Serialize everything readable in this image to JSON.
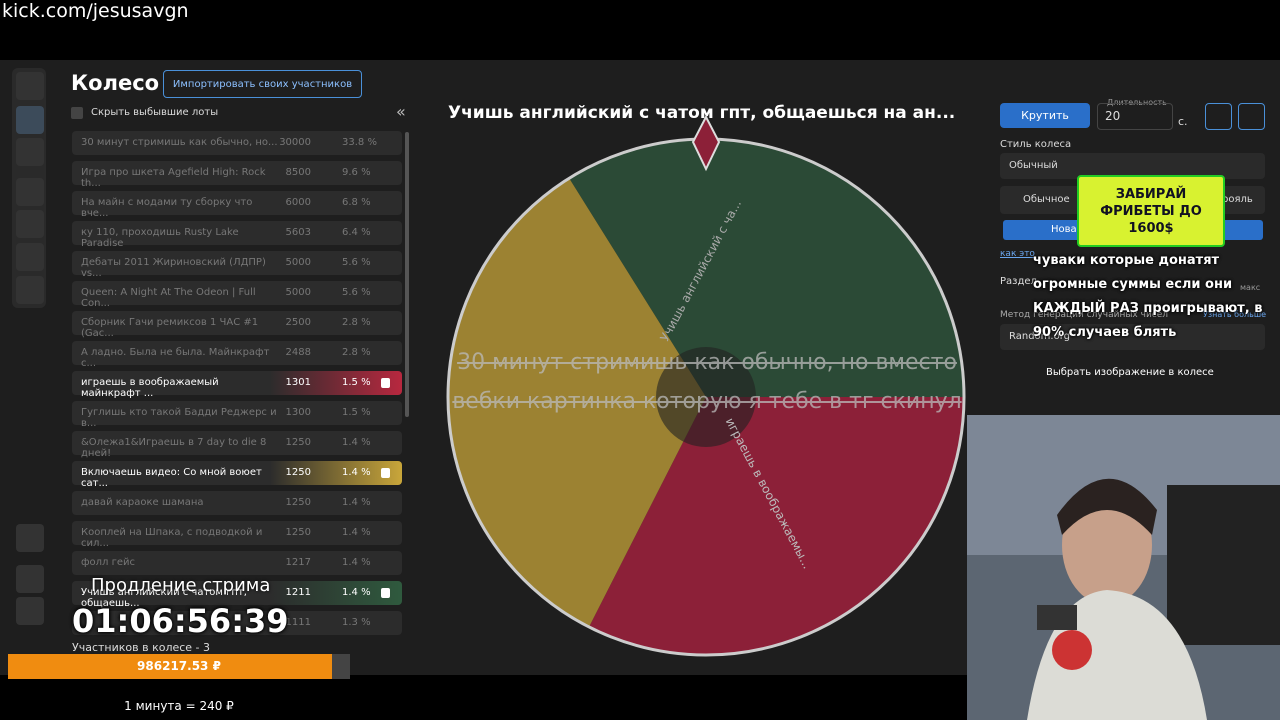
{
  "stream_url": "kick.com/jesusavgn",
  "header": {
    "title": "Колесо",
    "import_button": "Импортировать своих участников",
    "hide_checkbox": "Скрыть выбывшие лоты"
  },
  "lots": [
    {
      "name": "30 минут стримишь как обычно, но...",
      "amount": "30000",
      "percent": "33.8 %"
    },
    {
      "name": "Игра про шкета Agefield High: Rock th...",
      "amount": "8500",
      "percent": "9.6 %"
    },
    {
      "name": "На майн с модами ту сборку что вче...",
      "amount": "6000",
      "percent": "6.8 %"
    },
    {
      "name": "ку 110, проходишь Rusty Lake Paradise",
      "amount": "5603",
      "percent": "6.4 %"
    },
    {
      "name": "Дебаты 2011 Жириновский (ЛДПР) vs...",
      "amount": "5000",
      "percent": "5.6 %"
    },
    {
      "name": "Queen: A Night At The Odeon | Full Con...",
      "amount": "5000",
      "percent": "5.6 %"
    },
    {
      "name": "Сборник Гачи ремиксов 1 ЧАС #1 (Gac...",
      "amount": "2500",
      "percent": "2.8 %"
    },
    {
      "name": "А ладно. Была не была. Майнкрафт с...",
      "amount": "2488",
      "percent": "2.8 %"
    },
    {
      "name": "играешь в воображаемый майнкрафт ...",
      "amount": "1301",
      "percent": "1.5 %",
      "color": "#b8283f"
    },
    {
      "name": "Гуглишь кто такой Бадди Реджерс и в...",
      "amount": "1300",
      "percent": "1.5 %"
    },
    {
      "name": "&Олежа1&Играешь в 7 day to die 8 дней!",
      "amount": "1250",
      "percent": "1.4 %"
    },
    {
      "name": "Включаешь видео: Со мной воюет сат...",
      "amount": "1250",
      "percent": "1.4 %",
      "color": "#c9a63a"
    },
    {
      "name": "давай караоке шамана",
      "amount": "1250",
      "percent": "1.4 %"
    },
    {
      "name": "Кооплей на Шпака, с подводкой и сил...",
      "amount": "1250",
      "percent": "1.4 %"
    },
    {
      "name": "фолл гейс",
      "amount": "1217",
      "percent": "1.4 %"
    },
    {
      "name": "Учишь английский с чатом гпт, общаешь...",
      "amount": "1211",
      "percent": "1.4 %",
      "color": "#2f5a3e"
    },
    {
      "amount": "1111",
      "percent": "1.3 %"
    }
  ],
  "wheel": {
    "title": "Учишь английский с чатом гпт, общаешься на ан...",
    "segment_labels": [
      "Учишь английский с ча...",
      "играешь в воображаемы..."
    ],
    "overlay_text": "30 минут стримишь как обычно, но вместо вебки картинка которую я тебе в тг скинул"
  },
  "controls": {
    "spin": "Крутить",
    "duration_label": "Длительность",
    "duration": "20",
    "unit": "с.",
    "style_label": "Стиль колеса",
    "style": "Обычный",
    "mode_1": "Обычное",
    "mode_2": "рояль",
    "mode_3": "Нова",
    "link": "как это",
    "split_label": "Раздел",
    "max": "макс",
    "rng_label": "Метод генерации случайных чисел",
    "learn_more": "Узнать больше",
    "rng": "Random.org",
    "image_select": "Выбрать изображение в колесе"
  },
  "ad": {
    "text": "ЗАБИРАЙ ФРИБЕТЫ ДО 1600$"
  },
  "chat_overlay": "чуваки которые донатят огромные суммы если они КАЖДЫЙ РАЗ проигрывают, в 90% случаев блять",
  "stream_timer": {
    "label": "Продление стрима",
    "time": "01:06:56:39"
  },
  "participants": "Участников в колесе - 3",
  "donation_bar": {
    "amount": "986217.53 ₽",
    "rate": "1 минута = 240 ₽"
  }
}
